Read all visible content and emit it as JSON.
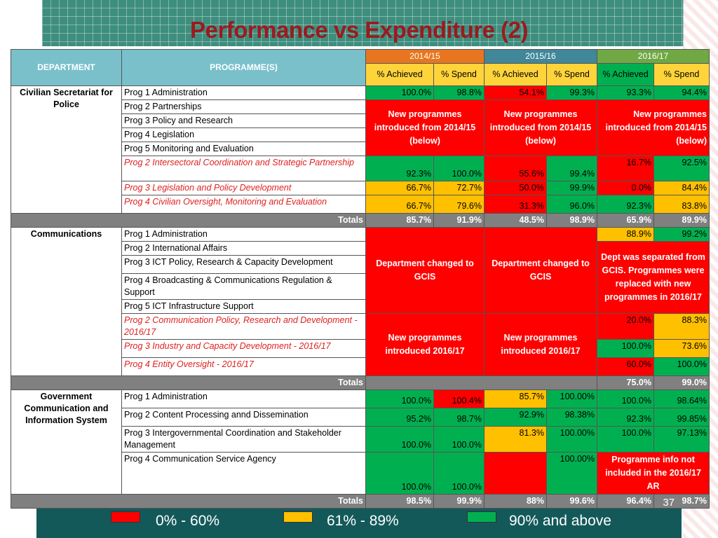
{
  "title": "Performance vs Expenditure (2)",
  "page_number": "37",
  "colors": {
    "red": "#ff0000",
    "amber": "#ffc000",
    "green": "#00b050",
    "total": "#808080"
  },
  "headers": {
    "department": "DEPARTMENT",
    "programmes": "PROGRAMME(S)",
    "years": [
      "2014/15",
      "2015/16",
      "2016/17"
    ],
    "achieved": "% Achieved",
    "spend": "%  Spend",
    "spend2": "% Spend"
  },
  "csp": {
    "name": "Civilian Secretariat  for Police",
    "progs": [
      "Prog 1 Administration",
      "Prog 2 Partnerships",
      "Prog 3 Policy and Research",
      "Prog 4 Legislation",
      "Prog 5 Monitoring and Evaluation",
      "Prog 2 Intersectoral Coordination and Strategic Partnership",
      "Prog 3 Legislation and Policy Development",
      "Prog 4 Civilian Oversight, Monitoring and Evaluation"
    ],
    "r1": [
      "100.0%",
      "98.8%",
      "54.1%",
      "99.3%",
      "93.3%",
      "94.4%"
    ],
    "note_new": "New programmes introduced from 2014/15 (below)",
    "r6": [
      "92.3%",
      "100.0%",
      "55.6%",
      "99.4%",
      "16.7%",
      "92.5%"
    ],
    "r7": [
      "66.7%",
      "72.7%",
      "50.0%",
      "99.9%",
      "0.0%",
      "84.4%"
    ],
    "r8": [
      "66.7%",
      "79.6%",
      "31.3%",
      "96.0%",
      "92.3%",
      "83.8%"
    ],
    "totals": [
      "85.7%",
      "91.9%",
      "48.5%",
      "98.9%",
      "65.9%",
      "89.9%"
    ]
  },
  "totals_label": "Totals",
  "comm": {
    "name": "Communications",
    "progs": [
      "Prog 1 Administration",
      "Prog 2 International Affairs",
      "Prog 3 ICT Policy, Research & Capacity Development",
      "Prog 4 Broadcasting & Communications Regulation & Support",
      "Prog 5 ICT Infrastructure Support",
      "Prog 2 Communication Policy, Research and Development - 2016/17",
      "Prog 3 Industry and Capacity Development  - 2016/17",
      "Prog 4 Entity Oversight - 2016/17"
    ],
    "note_changed": "Department changed to GCIS",
    "note_separated": "Dept was separated from GCIS. Programmes were replaced with new programmes in 2016/17",
    "note_new": "New programmes introduced 2016/17",
    "r1": [
      "88.9%",
      "99.2%"
    ],
    "r6": [
      "20.0%",
      "88.3%"
    ],
    "r7": [
      "100.0%",
      "73.6%"
    ],
    "r8": [
      "60.0%",
      "100.0%"
    ],
    "totals": [
      "75.0%",
      "99.0%"
    ]
  },
  "gcis": {
    "name": "Government Communication and Information System",
    "progs": [
      "Prog 1 Administration",
      "Prog 2 Content Processing annd Dissemination",
      "Prog 3 Intergovernmental Coordination and Stakeholder Management",
      "Prog 4 Communication Service Agency"
    ],
    "r1": [
      "100.0%",
      "100.4%",
      "85.7%",
      "100.00%",
      "100.0%",
      "98.64%"
    ],
    "r2": [
      "95.2%",
      "98.7%",
      "92.9%",
      "98.38%",
      "92.3%",
      "99.85%"
    ],
    "r3": [
      "100.0%",
      "100.0%",
      "81.3%",
      "100.00%",
      "100.0%",
      "97.13%"
    ],
    "r4": [
      "100.0%",
      "100.0%",
      "",
      "100.00%"
    ],
    "note_info": "Programme info not included in the 2016/17 AR",
    "totals": [
      "98.5%",
      "99.9%",
      "88%",
      "99.6%",
      "96.4%",
      "98.7%"
    ]
  },
  "legend": [
    "0% - 60%",
    "61% - 89%",
    "90% and above"
  ]
}
